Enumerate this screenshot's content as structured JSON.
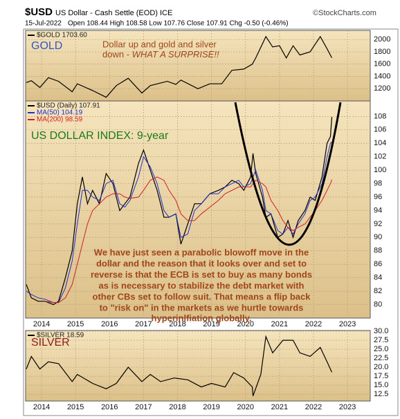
{
  "header": {
    "symbol": "$USD",
    "name": "US Dollar - Cash Settle (EOD) ICE",
    "source": "©StockCharts.com",
    "date": "15-Jul-2022",
    "quote": "Open 108.44 High 108.58 Low 107.76 Close 107.91 Chg -0.50 (-0.46%)"
  },
  "chart_data": [
    {
      "type": "line",
      "annotations": [
        "GOLD",
        "Dollar up and gold and silver",
        "down - ",
        "WHAT A SURPRISE!!"
      ],
      "x": [
        2013.55,
        2013.7,
        2013.95,
        2014.2,
        2014.5,
        2014.9,
        2015.05,
        2015.5,
        2015.9,
        2016.2,
        2016.55,
        2016.95,
        2017.2,
        2017.7,
        2017.95,
        2018.1,
        2018.6,
        2018.95,
        2019.3,
        2019.6,
        2019.95,
        2020.2,
        2020.3,
        2020.6,
        2020.8,
        2021.0,
        2021.2,
        2021.4,
        2021.6,
        2021.9,
        2022.2,
        2022.4,
        2022.54
      ],
      "series": [
        {
          "name": "$GOLD 1703.60",
          "color": "#000000",
          "values": [
            1300,
            1330,
            1220,
            1380,
            1320,
            1150,
            1280,
            1170,
            1060,
            1250,
            1370,
            1130,
            1250,
            1320,
            1270,
            1340,
            1200,
            1280,
            1280,
            1500,
            1520,
            1600,
            1700,
            2050,
            1880,
            1900,
            1700,
            1900,
            1750,
            1800,
            2050,
            1850,
            1703.6
          ]
        }
      ],
      "xlim": [
        2013.53,
        2023.67
      ],
      "ylim": [
        1000,
        2150
      ],
      "yticks": [
        1200,
        1400,
        1600,
        1800,
        2000
      ],
      "grid": true
    },
    {
      "type": "line",
      "annotations": [
        "US DOLLAR INDEX: 9-year",
        "We have just seen a parabolic blowoff move in the",
        "dollar and the reason that it looks over and set to",
        "reverse is that the ECB is set to buy as many bonds",
        "as is necessary to stabilize the debt market with",
        "other CBs set to follow suit. That means a flip back",
        "to \"risk on\" in the markets as we hurtle towards",
        "hyperinlfiation globally."
      ],
      "x": [
        2013.55,
        2013.7,
        2013.9,
        2014.1,
        2014.35,
        2014.5,
        2014.7,
        2014.9,
        2015.05,
        2015.2,
        2015.35,
        2015.5,
        2015.7,
        2015.9,
        2016.1,
        2016.3,
        2016.45,
        2016.6,
        2016.85,
        2017.0,
        2017.2,
        2017.4,
        2017.6,
        2017.75,
        2017.95,
        2018.1,
        2018.3,
        2018.5,
        2018.7,
        2018.95,
        2019.2,
        2019.4,
        2019.6,
        2019.8,
        2019.95,
        2020.15,
        2020.22,
        2020.3,
        2020.5,
        2020.6,
        2020.75,
        2020.95,
        2021.1,
        2021.25,
        2021.4,
        2021.55,
        2021.75,
        2021.9,
        2022.05,
        2022.25,
        2022.4,
        2022.5,
        2022.54
      ],
      "series": [
        {
          "name": "$USD (Daily) 107.91",
          "color": "#000000",
          "values": [
            83,
            81,
            80.5,
            80.5,
            80,
            80.5,
            84,
            88,
            95,
            99,
            95,
            97,
            95,
            99.5,
            98,
            94,
            95,
            96,
            101,
            103,
            100,
            97,
            93,
            93,
            93.5,
            89,
            92,
            95,
            95,
            96.5,
            97,
            97.5,
            98.5,
            98,
            97,
            99,
            102.5,
            99.5,
            96,
            93,
            93.5,
            90,
            90.5,
            92.5,
            90,
            92.5,
            94,
            96,
            95.5,
            99,
            104,
            105,
            107.91
          ]
        },
        {
          "name": "MA(50) 104.19",
          "color": "#1f2fd0",
          "values": [
            82,
            81.5,
            81,
            80.8,
            80.3,
            80.3,
            82.5,
            86.5,
            92,
            97,
            97,
            96,
            95.5,
            98,
            98.5,
            95,
            94.5,
            95.5,
            99,
            102,
            100.5,
            98,
            94,
            93,
            93.5,
            90,
            90.5,
            94,
            95,
            96.5,
            96.5,
            97.5,
            98,
            98.5,
            97.5,
            98,
            99,
            100,
            97,
            94,
            93.5,
            91,
            90.5,
            91.5,
            90.5,
            92,
            93.5,
            95.5,
            96,
            98,
            102,
            104,
            104.19
          ]
        },
        {
          "name": "MA(200) 98.59",
          "color": "#d01f1f",
          "values": [
            null,
            null,
            null,
            80.5,
            80.3,
            80.3,
            81,
            83,
            86,
            89,
            92,
            94,
            95,
            96,
            96.5,
            96.5,
            96,
            95.8,
            96,
            97,
            98.5,
            99,
            98.5,
            97,
            95.5,
            93.5,
            92.5,
            92.5,
            93.5,
            94.5,
            95.5,
            96.5,
            97,
            97.5,
            97.5,
            97.5,
            98,
            98.5,
            98,
            97.5,
            95.5,
            94,
            92.5,
            91.5,
            91,
            91.5,
            92,
            93,
            94,
            95.5,
            97,
            98,
            98.59
          ]
        }
      ],
      "xlim": [
        2013.53,
        2023.67
      ],
      "ylim": [
        78,
        110.3
      ],
      "yticks": [
        80,
        82,
        84,
        86,
        88,
        90,
        92,
        94,
        96,
        98,
        100,
        102,
        104,
        106,
        108
      ],
      "xticks": [
        2014,
        2015,
        2016,
        2017,
        2018,
        2019,
        2020,
        2021,
        2022,
        2023
      ],
      "grid": true
    },
    {
      "type": "line",
      "annotations": [
        "SILVER"
      ],
      "x": [
        2013.55,
        2013.7,
        2013.95,
        2014.2,
        2014.5,
        2014.9,
        2015.05,
        2015.5,
        2015.9,
        2016.2,
        2016.55,
        2016.95,
        2017.2,
        2017.5,
        2017.9,
        2018.3,
        2018.7,
        2019.0,
        2019.4,
        2019.65,
        2019.95,
        2020.2,
        2020.22,
        2020.45,
        2020.6,
        2020.8,
        2021.1,
        2021.4,
        2021.6,
        2021.9,
        2022.2,
        2022.4,
        2022.54
      ],
      "series": [
        {
          "name": "$SILVER 18.59",
          "color": "#000000",
          "values": [
            19.5,
            23,
            19.5,
            21.5,
            21,
            16,
            18,
            15.5,
            14,
            15.5,
            20,
            16,
            18,
            16,
            17,
            16.5,
            14.5,
            15.5,
            14.5,
            18.5,
            17,
            14.5,
            12,
            18,
            28.5,
            24,
            27.5,
            27.5,
            24,
            23,
            25.5,
            21.5,
            18.59
          ]
        }
      ],
      "xlim": [
        2013.53,
        2023.67
      ],
      "ylim": [
        10.6,
        30.2
      ],
      "yticks": [
        12.5,
        {
          "value": 15,
          "label": "15.0"
        },
        17.5,
        {
          "value": 20,
          "label": "20.0"
        },
        22.5,
        {
          "value": 25,
          "label": "25.0"
        },
        27.5,
        {
          "value": 30,
          "label": "30.0"
        }
      ],
      "xticks": [
        2014,
        2015,
        2016,
        2017,
        2018,
        2019,
        2020,
        2021,
        2022,
        2023
      ],
      "grid": true
    }
  ]
}
